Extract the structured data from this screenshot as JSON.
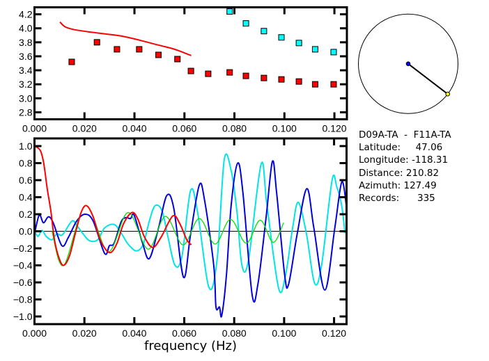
{
  "chart_data": [
    {
      "type": "scatter",
      "xlim": [
        0,
        0.125
      ],
      "ylim": [
        2.7,
        4.3
      ],
      "xticks": [
        "0.000",
        "0.020",
        "0.040",
        "0.060",
        "0.080",
        "0.100",
        "0.120"
      ],
      "yticks": [
        "2.8",
        "3.0",
        "3.2",
        "3.4",
        "3.6",
        "3.8",
        "4.0",
        "4.2"
      ],
      "grid": false,
      "series": [
        {
          "kind": "points",
          "color": "#ff0000",
          "x": [
            0.0149,
            0.025,
            0.033,
            0.0419,
            0.0496,
            0.0572,
            0.0626,
            0.0695,
            0.0781,
            0.0846,
            0.0918,
            0.0988,
            0.1058,
            0.1123,
            0.1197
          ],
          "y": [
            3.52,
            3.8,
            3.7,
            3.7,
            3.62,
            3.56,
            3.39,
            3.35,
            3.37,
            3.32,
            3.29,
            3.27,
            3.24,
            3.2,
            3.2
          ]
        },
        {
          "kind": "points",
          "color": "#00ffff",
          "x": [
            0.0781,
            0.0846,
            0.0918,
            0.0988,
            0.1058,
            0.1123,
            0.1197
          ],
          "y": [
            4.24,
            4.07,
            3.96,
            3.87,
            3.79,
            3.7,
            3.66
          ]
        },
        {
          "kind": "line",
          "color": "#ff0000",
          "x": [
            0.0102,
            0.0123,
            0.016,
            0.0216,
            0.0282,
            0.0347,
            0.0421,
            0.0496,
            0.0561,
            0.0627
          ],
          "y": [
            4.09,
            4.02,
            3.98,
            3.95,
            3.92,
            3.89,
            3.83,
            3.76,
            3.7,
            3.61
          ]
        }
      ]
    },
    {
      "type": "line",
      "xlim": [
        0,
        0.125
      ],
      "ylim": [
        -1.09,
        1.09
      ],
      "xlabel": "frequency (Hz)",
      "xticks": [
        "0.000",
        "0.020",
        "0.040",
        "0.060",
        "0.080",
        "0.100",
        "0.120"
      ],
      "yticks": [
        "-1.0",
        "-0.8",
        "-0.6",
        "-0.4",
        "-0.2",
        "0.0",
        "0.2",
        "0.4",
        "0.6",
        "0.8",
        "1.0"
      ],
      "grid": false,
      "zero_line": true,
      "series": [
        {
          "color": "#00e5e5",
          "x": [
            0,
            0.0014,
            0.003,
            0.0047,
            0.007,
            0.0089,
            0.0112,
            0.015,
            0.0169,
            0.0192,
            0.022,
            0.0253,
            0.0281,
            0.0319,
            0.0347,
            0.0375,
            0.0408,
            0.0436,
            0.046,
            0.0483,
            0.0511,
            0.0535,
            0.0563,
            0.0591,
            0.0625,
            0.0653,
            0.0699,
            0.0732,
            0.076,
            0.0788,
            0.0811,
            0.0831,
            0.0857,
            0.0908,
            0.0931,
            0.0978,
            0.1006,
            0.1034,
            0.1057,
            0.109,
            0.1122,
            0.115,
            0.1192,
            0.1211,
            0.123,
            0.1244
          ],
          "y": [
            0.01,
            -0.06,
            0.01,
            -0.06,
            -0.1,
            -0.03,
            -0.04,
            0.12,
            0.07,
            -0.02,
            -0.11,
            -0.1,
            0.04,
            0.08,
            -0.02,
            -0.15,
            -0.23,
            -0.15,
            0.12,
            0.3,
            0.24,
            -0.07,
            -0.4,
            -0.29,
            0.475,
            0.23,
            -0.66,
            -0.32,
            0.84,
            0.71,
            0.23,
            -0.4,
            -0.34,
            0.79,
            0.31,
            -0.67,
            -0.51,
            0.04,
            0.34,
            -0.04,
            -0.61,
            -0.4,
            0.6,
            0.52,
            0.31,
            -0.02
          ]
        },
        {
          "color": "#0000e0",
          "x": [
            0,
            0.0019,
            0.0036,
            0.0056,
            0.0075,
            0.011,
            0.0136,
            0.0169,
            0.0202,
            0.0235,
            0.0281,
            0.03,
            0.0319,
            0.0347,
            0.0366,
            0.0385,
            0.0399,
            0.0432,
            0.046,
            0.0497,
            0.053,
            0.0558,
            0.0597,
            0.0625,
            0.066,
            0.0681,
            0.0718,
            0.0727,
            0.0741,
            0.075,
            0.0769,
            0.0788,
            0.0814,
            0.0835,
            0.0872,
            0.0895,
            0.0928,
            0.0953,
            0.097,
            0.1002,
            0.1018,
            0.1053,
            0.1091,
            0.1119,
            0.1163,
            0.1203,
            0.1231,
            0.125
          ],
          "y": [
            -0.03,
            0.19,
            0.1,
            0.17,
            0.1,
            -0.17,
            -0.07,
            0.12,
            0.2,
            0.12,
            -0.26,
            -0.17,
            -0.14,
            0.11,
            0.16,
            0.15,
            0.19,
            -0.13,
            -0.32,
            0.04,
            0.42,
            0.27,
            -0.54,
            -0.04,
            0.54,
            0.37,
            -0.4,
            -0.89,
            -0.89,
            -0.99,
            -0.51,
            0.31,
            0.8,
            0.45,
            -0.75,
            -0.62,
            0.17,
            0.82,
            0.45,
            -0.51,
            -0.62,
            -0.02,
            0.5,
            0.04,
            -0.69,
            0.04,
            0.58,
            0.28
          ]
        },
        {
          "color": "#00e000",
          "x": [
            0.007,
            0.0117,
            0.0205,
            0.0295,
            0.0375,
            0.0455,
            0.0524,
            0.0595,
            0.066,
            0.0723,
            0.0785,
            0.0848,
            0.0904,
            0.0956,
            0.0998
          ],
          "y": [
            0.0,
            -0.4,
            0.3,
            -0.24,
            0.22,
            -0.21,
            0.175,
            -0.16,
            0.15,
            -0.15,
            0.14,
            -0.14,
            0.13,
            -0.13,
            0.1
          ]
        },
        {
          "color": "#ff0000",
          "x": [
            0,
            0.0023,
            0.0037,
            0.0051,
            0.0066,
            0.008,
            0.0099,
            0.0117,
            0.014,
            0.0164,
            0.0188,
            0.0209,
            0.0235,
            0.0263,
            0.03,
            0.0329,
            0.0357,
            0.039,
            0.0413,
            0.0441,
            0.0474,
            0.0507,
            0.0554,
            0.0582,
            0.061,
            0.0628
          ],
          "y": [
            1.0,
            0.95,
            0.8,
            0.5,
            0.23,
            -0.1,
            -0.32,
            -0.4,
            -0.29,
            -0.02,
            0.23,
            0.3,
            0.17,
            -0.1,
            -0.25,
            -0.15,
            0.09,
            0.22,
            0.15,
            -0.07,
            -0.19,
            -0.07,
            0.18,
            0.09,
            -0.1,
            -0.16
          ]
        }
      ]
    }
  ],
  "azimuth_plot": {
    "azimuth_deg": 127.49,
    "center_color": "#0000ff",
    "end_color": "#ffff00"
  },
  "info": {
    "pair": "D09A-TA  -  F11A-TA",
    "latitude_label": "Latitude:",
    "latitude": "47.06",
    "longitude_label": "Longitude:",
    "longitude": "-118.31",
    "distance_label": "Distance:",
    "distance": "210.82",
    "azimuth_label": "Azimuth:",
    "azimuth": "127.49",
    "records_label": "Records:",
    "records": "335"
  }
}
